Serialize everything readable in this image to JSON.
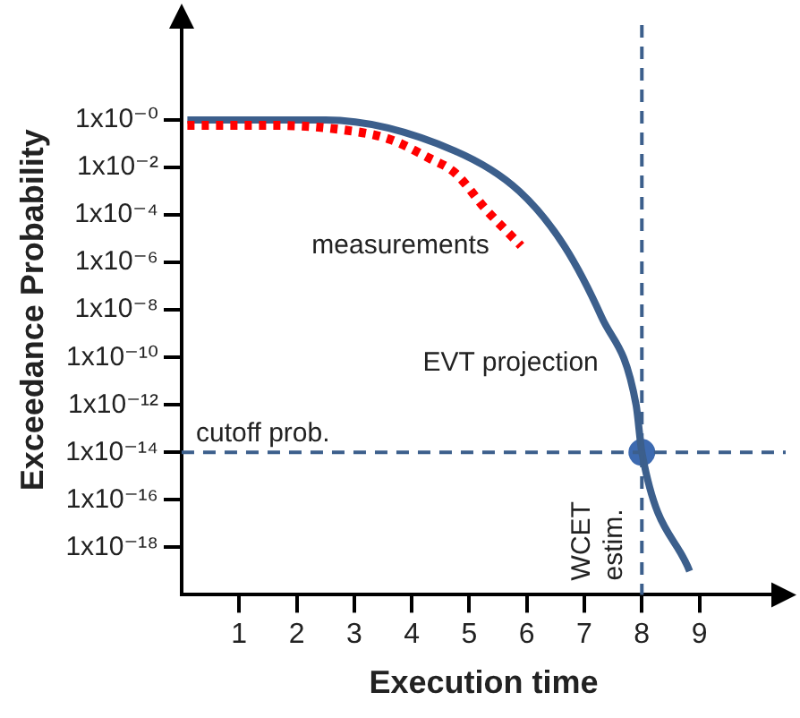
{
  "chart_data": {
    "type": "line",
    "xlabel": "Execution time",
    "ylabel": "Exceedance Probability",
    "log": "y",
    "xlim": [
      0,
      10.5
    ],
    "xticks": [
      1,
      2,
      3,
      4,
      5,
      6,
      7,
      8,
      9
    ],
    "ylim": [
      1e-20,
      10000.0
    ],
    "yticks": [
      {
        "value": 1,
        "label": "1x10⁻⁰"
      },
      {
        "value": 0.01,
        "label": "1x10⁻²"
      },
      {
        "value": 0.0001,
        "label": "1x10⁻⁴"
      },
      {
        "value": 1e-06,
        "label": "1x10⁻⁶"
      },
      {
        "value": 1e-08,
        "label": "1x10⁻⁸"
      },
      {
        "value": 1e-10,
        "label": "1x10⁻¹⁰"
      },
      {
        "value": 1e-12,
        "label": "1x10⁻¹²"
      },
      {
        "value": 1e-14,
        "label": "1x10⁻¹⁴"
      },
      {
        "value": 1e-16,
        "label": "1x10⁻¹⁶"
      },
      {
        "value": 1e-18,
        "label": "1x10⁻¹⁸"
      }
    ],
    "grid": false,
    "legend": false,
    "series": [
      {
        "name": "measurements",
        "color": "#ff0000",
        "line_style": "dotted",
        "marker": "none",
        "x": [
          0.1,
          1.6,
          2.75,
          3.6,
          4.3,
          4.75,
          5.3,
          5.9
        ],
        "values": [
          0.6,
          0.6,
          0.4,
          0.16,
          0.025,
          0.006,
          0.00016,
          5e-06
        ]
      },
      {
        "name": "EVT projection",
        "color": "#3c5f8c",
        "line_style": "solid",
        "marker": "none",
        "x": [
          0.1,
          2.5,
          4.75,
          5.87,
          6.65,
          7.3,
          7.9,
          8,
          8.83
        ],
        "values": [
          1,
          1,
          0.05,
          0.001,
          5e-06,
          5e-09,
          1e-12,
          1e-14,
          1e-19
        ]
      },
      {
        "type": "scatter",
        "color": "#3d6ab0",
        "marker": "circle",
        "x": [
          8
        ],
        "values": [
          1e-14
        ]
      }
    ],
    "ref_lines": [
      {
        "axis": "y",
        "value": 1e-14,
        "label": "cutoff prob.",
        "color": "#3c5f8c",
        "line_style": "dashed"
      },
      {
        "axis": "x",
        "value": 8,
        "label": "WCET estim.",
        "color": "#3c5f8c",
        "line_style": "dashed"
      }
    ]
  }
}
